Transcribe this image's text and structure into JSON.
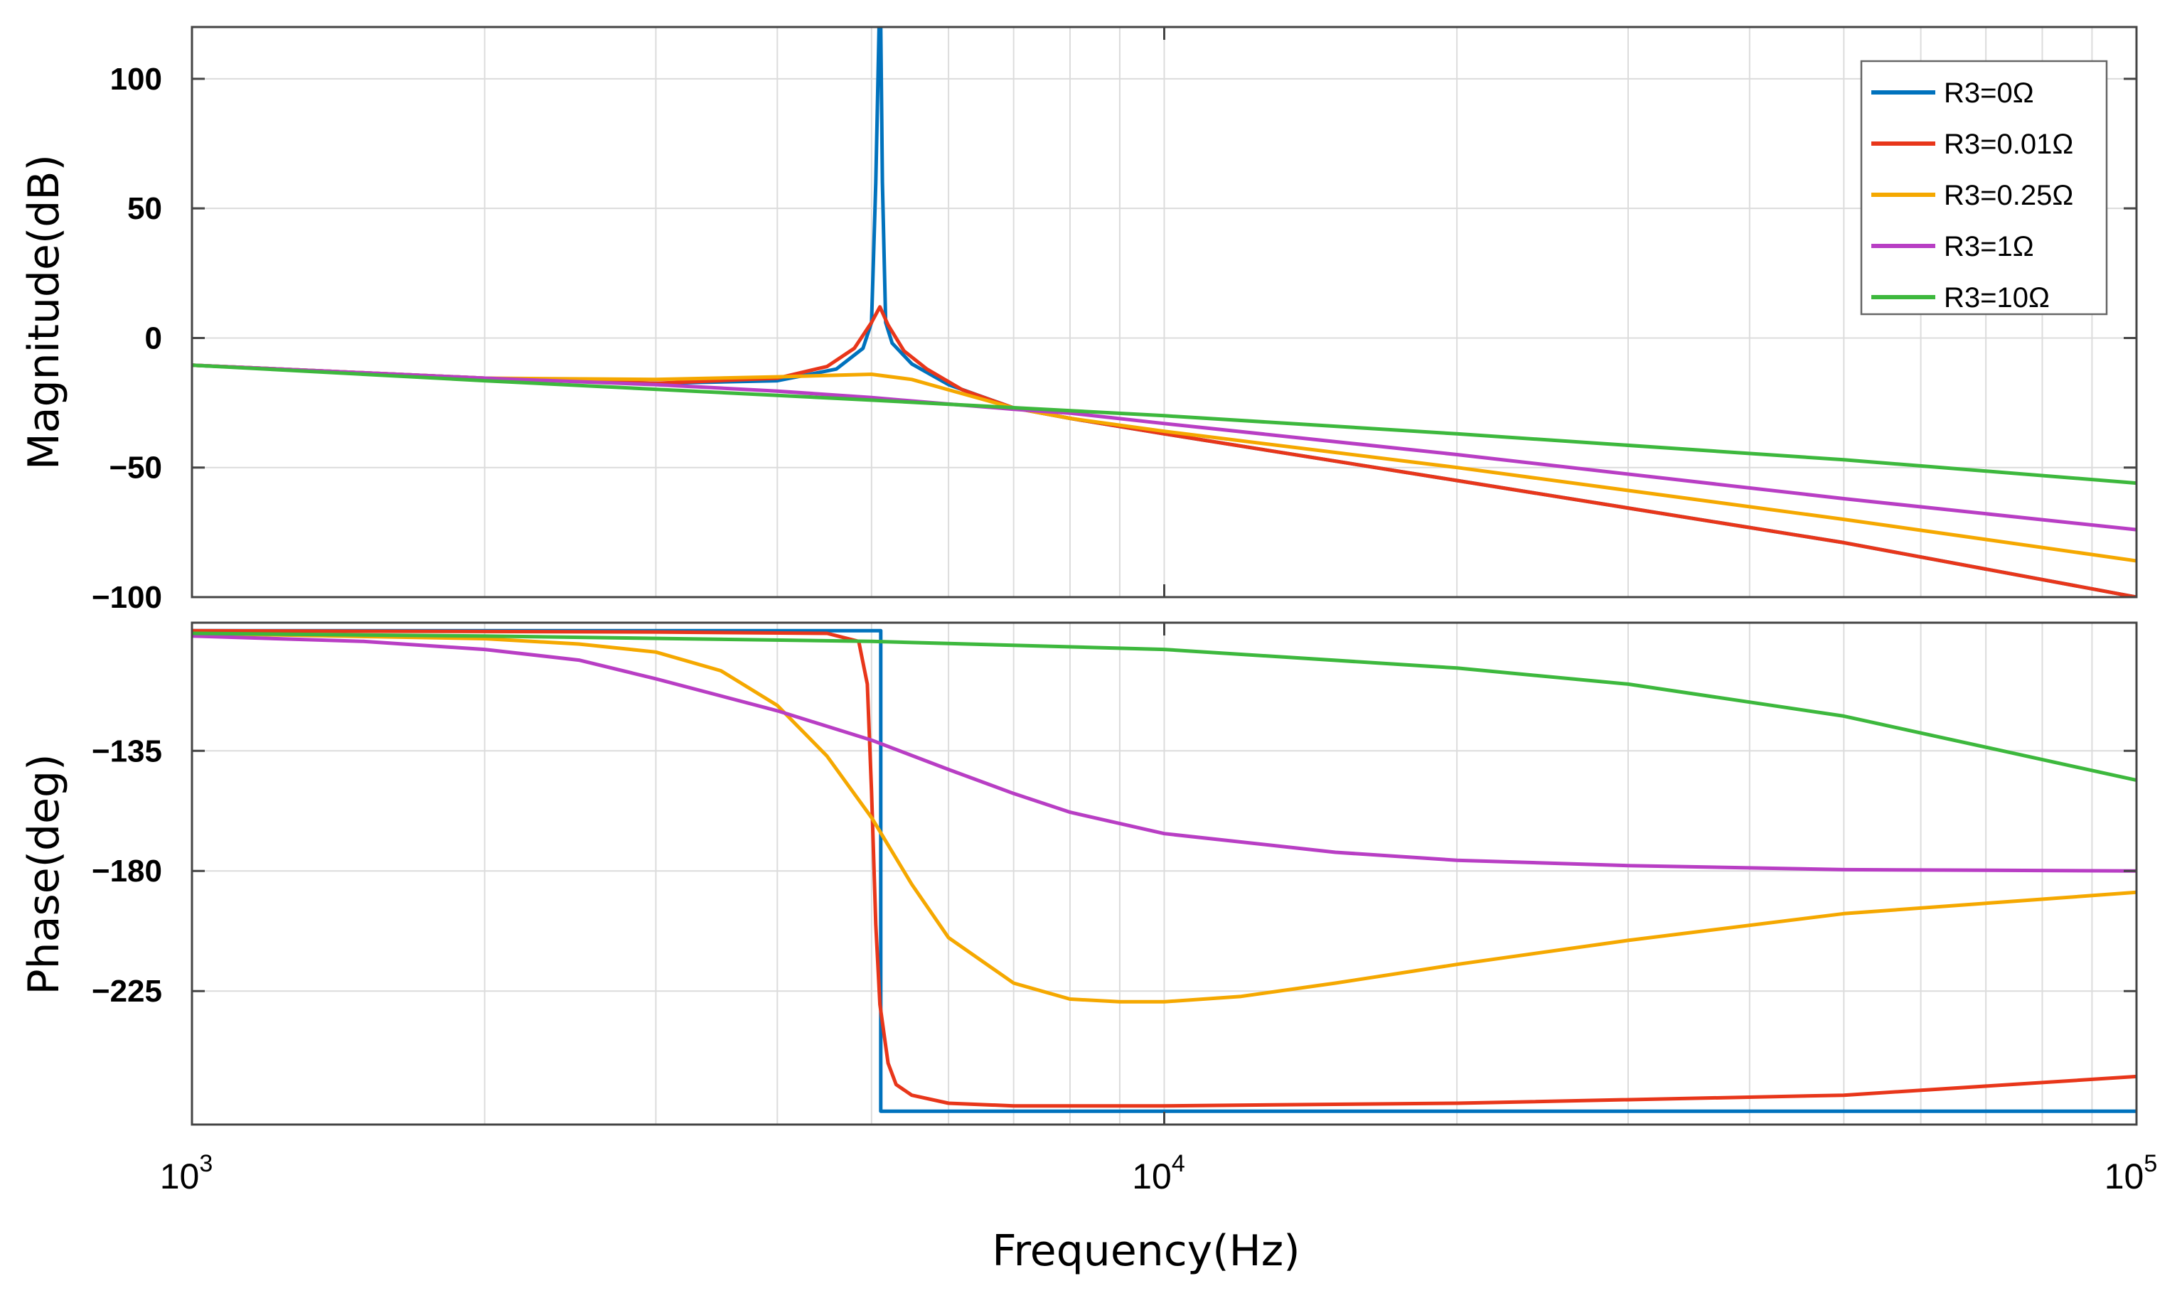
{
  "chart_data": [
    {
      "type": "line",
      "name": "magnitude",
      "xscale": "log",
      "xlim": [
        1000,
        100000
      ],
      "ylim": [
        -100,
        120
      ],
      "ylabel": "Magnitude(dB)",
      "yticks": [
        100,
        50,
        0,
        -50,
        -100
      ],
      "ytick_labels": [
        "100",
        "50",
        "0",
        "−50",
        "−100"
      ],
      "grid": true,
      "legend_position": "top-right",
      "series": [
        {
          "name": "R3=0Ω",
          "color": "#0072BD",
          "x": [
            1000,
            2000,
            3000,
            4000,
            4600,
            4900,
            5000,
            5050,
            5090,
            5110,
            5130,
            5170,
            5250,
            5500,
            6000,
            7000,
            8000,
            10000,
            20000,
            50000,
            100000
          ],
          "y": [
            -10.5,
            -15.5,
            -17.5,
            -16.5,
            -12,
            -4,
            6,
            60,
            120,
            120,
            60,
            6,
            -2,
            -10,
            -18,
            -27,
            -31,
            -37,
            -55,
            -79,
            -100
          ]
        },
        {
          "name": "R3=0.01Ω",
          "color": "#E8361A",
          "x": [
            1000,
            2000,
            3000,
            4000,
            4500,
            4800,
            5000,
            5100,
            5200,
            5400,
            5700,
            6200,
            7000,
            8000,
            10000,
            20000,
            50000,
            100000
          ],
          "y": [
            -10.5,
            -15.5,
            -17.5,
            -15.5,
            -11,
            -4,
            6,
            12,
            5,
            -5,
            -12,
            -20,
            -27,
            -31,
            -37,
            -55,
            -79,
            -100
          ]
        },
        {
          "name": "R3=0.25Ω",
          "color": "#F5A800",
          "x": [
            1000,
            2000,
            3000,
            4000,
            5000,
            5500,
            6000,
            7000,
            8000,
            10000,
            20000,
            50000,
            100000
          ],
          "y": [
            -10.5,
            -15.5,
            -16,
            -15,
            -14,
            -16,
            -20,
            -27,
            -31,
            -36,
            -50,
            -70,
            -86
          ]
        },
        {
          "name": "R3=1Ω",
          "color": "#B83EC4",
          "x": [
            1000,
            2000,
            3000,
            4000,
            5000,
            6000,
            7000,
            8000,
            10000,
            20000,
            50000,
            100000
          ],
          "y": [
            -10.5,
            -15.5,
            -18,
            -20.5,
            -23,
            -25.5,
            -27.5,
            -29,
            -33,
            -45,
            -62,
            -74
          ]
        },
        {
          "name": "R3=10Ω",
          "color": "#3DB83D",
          "x": [
            1000,
            2000,
            5000,
            10000,
            20000,
            50000,
            100000
          ],
          "y": [
            -10.5,
            -16.5,
            -24,
            -30,
            -37,
            -47,
            -56
          ]
        }
      ]
    },
    {
      "type": "line",
      "name": "phase",
      "xscale": "log",
      "xlim": [
        1000,
        100000
      ],
      "ylim": [
        -275,
        -87
      ],
      "ylabel": "Phase(deg)",
      "xlabel": "Frequency(Hz)",
      "yticks": [
        -135,
        -180,
        -225
      ],
      "ytick_labels": [
        "−135",
        "−180",
        "−225"
      ],
      "xticks": [
        1000,
        10000,
        100000
      ],
      "xtick_base": "10",
      "xtick_exponents": [
        "3",
        "4",
        "5"
      ],
      "grid": true,
      "series": [
        {
          "name": "R3=0Ω",
          "color": "#0072BD",
          "x": [
            1000,
            5110,
            5110,
            100000
          ],
          "y": [
            -90,
            -90,
            -270,
            -270
          ]
        },
        {
          "name": "R3=0.01Ω",
          "color": "#E8361A",
          "x": [
            1000,
            3000,
            4500,
            4850,
            4950,
            5000,
            5050,
            5100,
            5200,
            5300,
            5500,
            6000,
            7000,
            10000,
            20000,
            50000,
            100000
          ],
          "y": [
            -90,
            -90.5,
            -91,
            -94,
            -110,
            -150,
            -200,
            -230,
            -252,
            -260,
            -264,
            -267,
            -268,
            -268,
            -267,
            -264,
            -257
          ]
        },
        {
          "name": "R3=0.25Ω",
          "color": "#F5A800",
          "x": [
            1000,
            2000,
            2500,
            3000,
            3500,
            4000,
            4500,
            5000,
            5500,
            6000,
            7000,
            8000,
            9000,
            10000,
            12000,
            15000,
            20000,
            30000,
            50000,
            100000
          ],
          "y": [
            -91,
            -93,
            -95,
            -98,
            -105,
            -118,
            -137,
            -160,
            -185,
            -205,
            -222,
            -228,
            -229,
            -229,
            -227,
            -222,
            -215,
            -206,
            -196,
            -188
          ]
        },
        {
          "name": "R3=1Ω",
          "color": "#B83EC4",
          "x": [
            1000,
            1500,
            2000,
            2500,
            3000,
            4000,
            5000,
            6000,
            7000,
            8000,
            10000,
            15000,
            20000,
            30000,
            50000,
            100000
          ],
          "y": [
            -92,
            -94,
            -97,
            -101,
            -108,
            -120,
            -131,
            -142,
            -151,
            -158,
            -166,
            -173,
            -176,
            -178,
            -179.5,
            -180
          ]
        },
        {
          "name": "R3=10Ω",
          "color": "#3DB83D",
          "x": [
            1000,
            2000,
            5000,
            10000,
            20000,
            30000,
            50000,
            100000
          ],
          "y": [
            -91,
            -92,
            -94,
            -97,
            -104,
            -110,
            -122,
            -146
          ]
        }
      ]
    }
  ]
}
